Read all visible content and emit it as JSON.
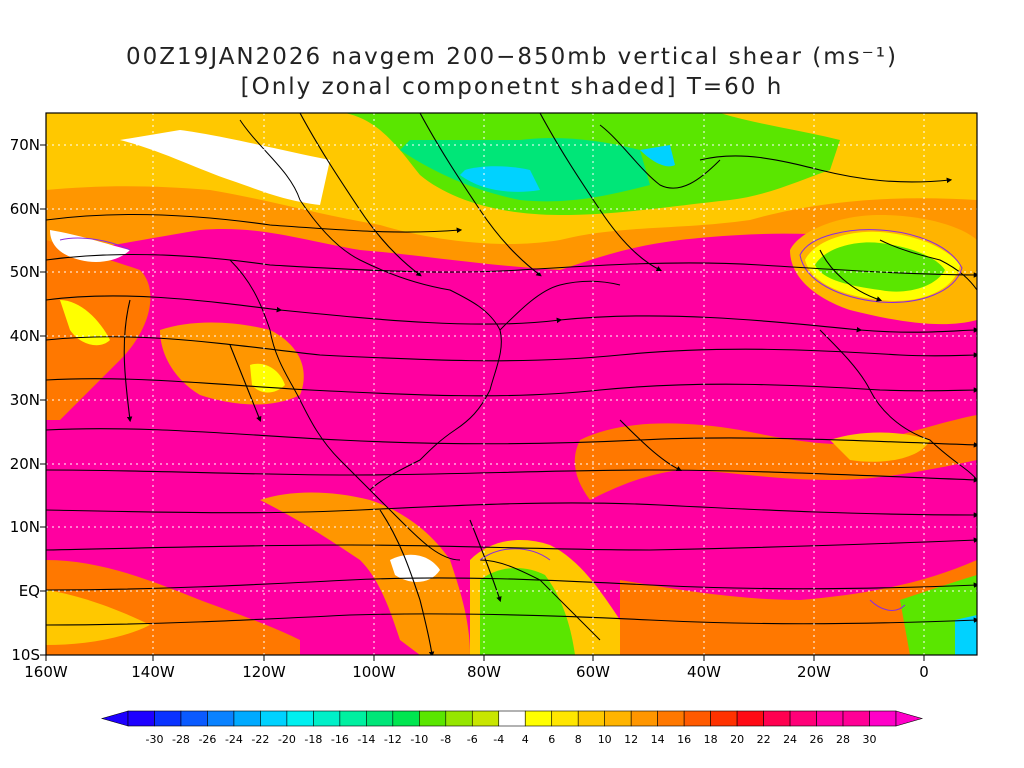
{
  "title": {
    "line1": "00Z19JAN2026 navgem 200−850mb vertical shear (ms⁻¹)",
    "line2": "[Only zonal componetnt shaded] T=60 h"
  },
  "map": {
    "lat_labels": [
      "70N",
      "60N",
      "50N",
      "40N",
      "30N",
      "20N",
      "10N",
      "EQ",
      "10S"
    ],
    "lon_labels": [
      "160W",
      "140W",
      "120W",
      "100W",
      "80W",
      "60W",
      "40W",
      "20W",
      "0"
    ],
    "grid": "dotted"
  },
  "colorbar": {
    "labels": [
      "-30",
      "-28",
      "-26",
      "-24",
      "-22",
      "-20",
      "-18",
      "-16",
      "-14",
      "-12",
      "-10",
      "-8",
      "-6",
      "-4",
      "4",
      "6",
      "8",
      "10",
      "12",
      "14",
      "16",
      "18",
      "20",
      "22",
      "24",
      "26",
      "28",
      "30"
    ],
    "colors": [
      "#1e00ff",
      "#0a32ff",
      "#0a5aff",
      "#0a82ff",
      "#00aaff",
      "#00d2ff",
      "#00f0f0",
      "#00f0c8",
      "#00f0a0",
      "#00e678",
      "#00e650",
      "#5ae600",
      "#96e600",
      "#c8e600",
      "#ffffff",
      "#ffff00",
      "#ffe600",
      "#ffc800",
      "#ffb400",
      "#ff9600",
      "#ff7800",
      "#ff5a00",
      "#ff3200",
      "#ff0a14",
      "#ff0050",
      "#ff0078",
      "#ff00a0",
      "#ff0096",
      "#ff00c8"
    ]
  }
}
